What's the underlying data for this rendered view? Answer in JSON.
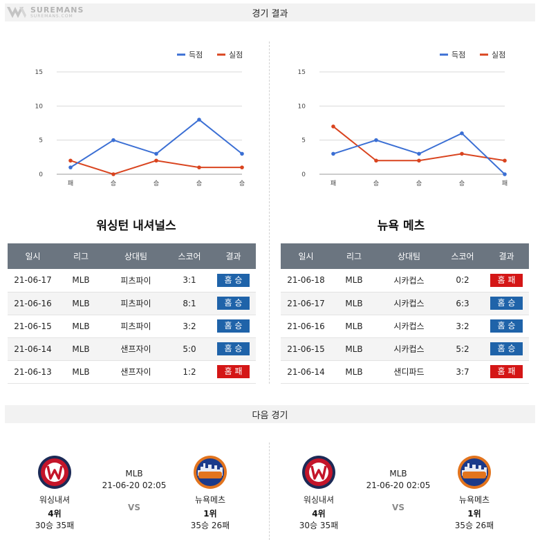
{
  "brand": {
    "name": "SUREMANS",
    "domain": "SUREMANS.COM"
  },
  "sections": {
    "results_title": "경기 결과",
    "next_title": "다음 경기"
  },
  "legend": {
    "scored": "득점",
    "conceded": "실점"
  },
  "colors": {
    "scored": "#3b6fd4",
    "conceded": "#d9441f",
    "win": "#1f63a9",
    "loss": "#d41616",
    "header": "#6b7580"
  },
  "table_headers": [
    "일시",
    "리그",
    "상대팀",
    "스코어",
    "결과"
  ],
  "teams": [
    {
      "name": "워싱턴 내셔널스",
      "chart_data": {
        "type": "line",
        "categories": [
          "패",
          "승",
          "승",
          "승",
          "승"
        ],
        "series": [
          {
            "name": "득점",
            "values": [
              1,
              5,
              3,
              8,
              3
            ]
          },
          {
            "name": "실점",
            "values": [
              2,
              0,
              2,
              1,
              1
            ]
          }
        ],
        "ylim": [
          0,
          15
        ],
        "yticks": [
          0,
          5,
          10,
          15
        ],
        "grid": true,
        "legend": "top-right"
      },
      "games": [
        {
          "date": "21-06-17",
          "league": "MLB",
          "opponent": "피츠파이",
          "score": "3:1",
          "result": "홈승",
          "outcome": "win"
        },
        {
          "date": "21-06-16",
          "league": "MLB",
          "opponent": "피츠파이",
          "score": "8:1",
          "result": "홈승",
          "outcome": "win"
        },
        {
          "date": "21-06-15",
          "league": "MLB",
          "opponent": "피츠파이",
          "score": "3:2",
          "result": "홈승",
          "outcome": "win"
        },
        {
          "date": "21-06-14",
          "league": "MLB",
          "opponent": "샌프자이",
          "score": "5:0",
          "result": "홈승",
          "outcome": "win"
        },
        {
          "date": "21-06-13",
          "league": "MLB",
          "opponent": "샌프자이",
          "score": "1:2",
          "result": "홈패",
          "outcome": "loss"
        }
      ]
    },
    {
      "name": "뉴욕 메츠",
      "chart_data": {
        "type": "line",
        "categories": [
          "패",
          "승",
          "승",
          "승",
          "패"
        ],
        "series": [
          {
            "name": "득점",
            "values": [
              3,
              5,
              3,
              6,
              0
            ]
          },
          {
            "name": "실점",
            "values": [
              7,
              2,
              2,
              3,
              2
            ]
          }
        ],
        "ylim": [
          0,
          15
        ],
        "yticks": [
          0,
          5,
          10,
          15
        ],
        "grid": true,
        "legend": "top-right"
      },
      "games": [
        {
          "date": "21-06-18",
          "league": "MLB",
          "opponent": "시카컵스",
          "score": "0:2",
          "result": "홈패",
          "outcome": "loss"
        },
        {
          "date": "21-06-17",
          "league": "MLB",
          "opponent": "시카컵스",
          "score": "6:3",
          "result": "홈승",
          "outcome": "win"
        },
        {
          "date": "21-06-16",
          "league": "MLB",
          "opponent": "시카컵스",
          "score": "3:2",
          "result": "홈승",
          "outcome": "win"
        },
        {
          "date": "21-06-15",
          "league": "MLB",
          "opponent": "시카컵스",
          "score": "5:2",
          "result": "홈승",
          "outcome": "win"
        },
        {
          "date": "21-06-14",
          "league": "MLB",
          "opponent": "샌디파드",
          "score": "3:7",
          "result": "홈패",
          "outcome": "loss"
        }
      ]
    }
  ],
  "next_matches": [
    {
      "league": "MLB",
      "datetime": "21-06-20 02:05",
      "vs": "VS",
      "home": {
        "name": "워싱내셔",
        "rank": "4위",
        "record": "30승 35패",
        "logo": "nationals-logo-icon"
      },
      "away": {
        "name": "뉴욕메츠",
        "rank": "1위",
        "record": "35승 26패",
        "logo": "mets-logo-icon"
      }
    },
    {
      "league": "MLB",
      "datetime": "21-06-20 02:05",
      "vs": "VS",
      "home": {
        "name": "워싱내셔",
        "rank": "4위",
        "record": "30승 35패",
        "logo": "nationals-logo-icon"
      },
      "away": {
        "name": "뉴욕메츠",
        "rank": "1위",
        "record": "35승 26패",
        "logo": "mets-logo-icon"
      }
    }
  ]
}
